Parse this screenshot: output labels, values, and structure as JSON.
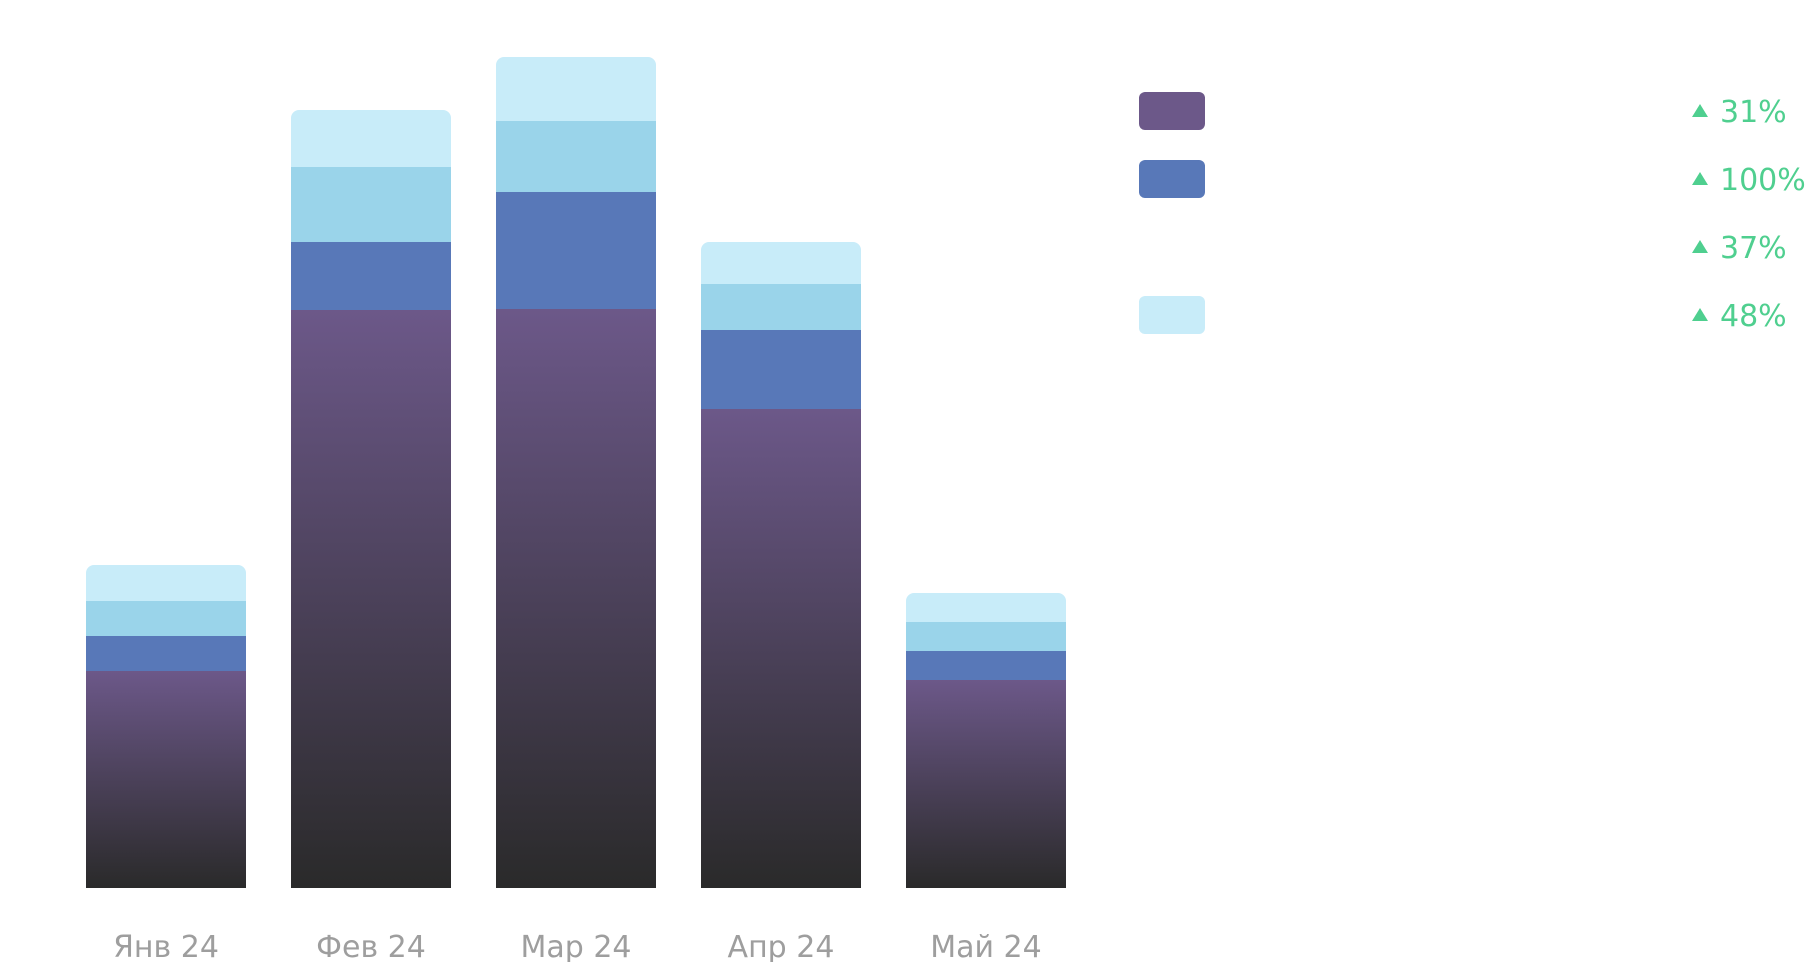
{
  "chart_data": {
    "type": "bar",
    "stacked": true,
    "categories": [
      "Янв 24",
      "Фев 24",
      "Мар 24",
      "Апр 24",
      "Май 24"
    ],
    "series": [
      {
        "color": "#6c5889",
        "gradient_bottom": "#2a2a2a",
        "values": [
          217,
          578,
          579,
          479,
          208
        ],
        "change": "31%",
        "change_direction": "up"
      },
      {
        "color": "#5878b8",
        "values": [
          35,
          68,
          117,
          79,
          29
        ],
        "change": "100%",
        "change_direction": "up"
      },
      {
        "color": "#9ad4ea",
        "values": [
          35,
          75,
          71,
          46,
          29
        ],
        "change": "37%",
        "change_direction": "up",
        "swatch_hidden": true
      },
      {
        "color": "#c8ecf9",
        "values": [
          36,
          57,
          64,
          42,
          29
        ],
        "change": "48%",
        "change_direction": "up"
      }
    ],
    "ylim": [
      0,
      840
    ],
    "grid": false,
    "y_axis_visible": false,
    "legend_position": "right"
  }
}
